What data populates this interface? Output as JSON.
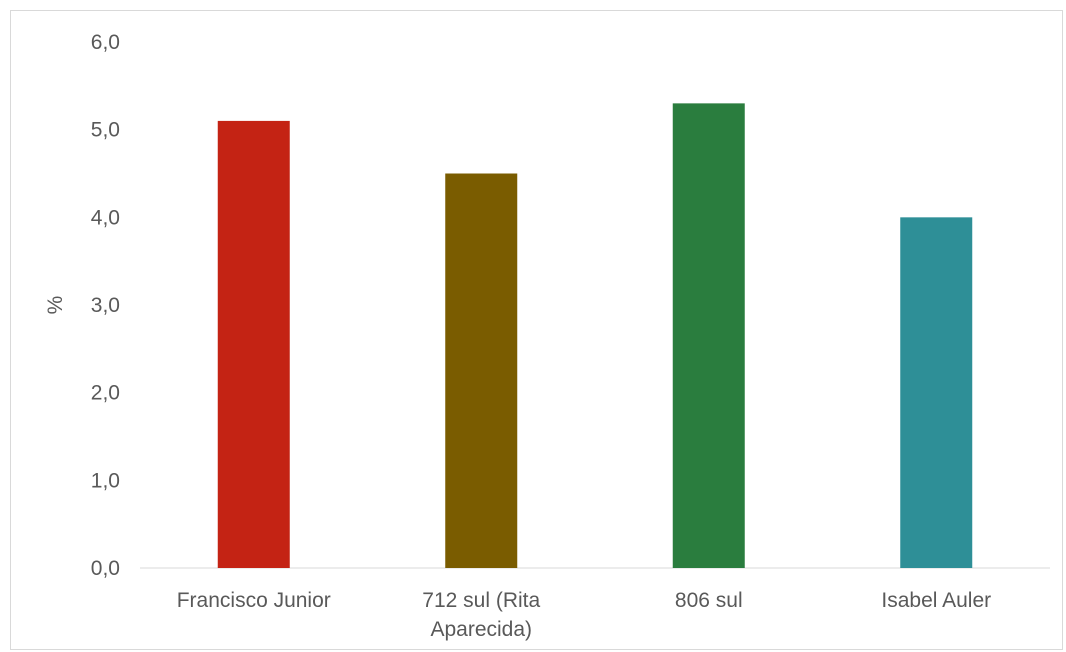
{
  "chart_data": {
    "type": "bar",
    "categories": [
      [
        "Francisco Junior"
      ],
      [
        "712 sul (Rita",
        "Aparecida)"
      ],
      [
        "806 sul"
      ],
      [
        "Isabel Auler"
      ]
    ],
    "values": [
      5.1,
      4.5,
      5.3,
      4.0
    ],
    "colors": [
      "#c42314",
      "#7a5c00",
      "#2a7d3e",
      "#2e8f97"
    ],
    "title": "",
    "xlabel": "",
    "ylabel": "%",
    "ylim": [
      0,
      6
    ],
    "yticks": [
      "0,0",
      "1,0",
      "2,0",
      "3,0",
      "4,0",
      "5,0",
      "6,0"
    ],
    "grid": false,
    "legend": "none"
  }
}
